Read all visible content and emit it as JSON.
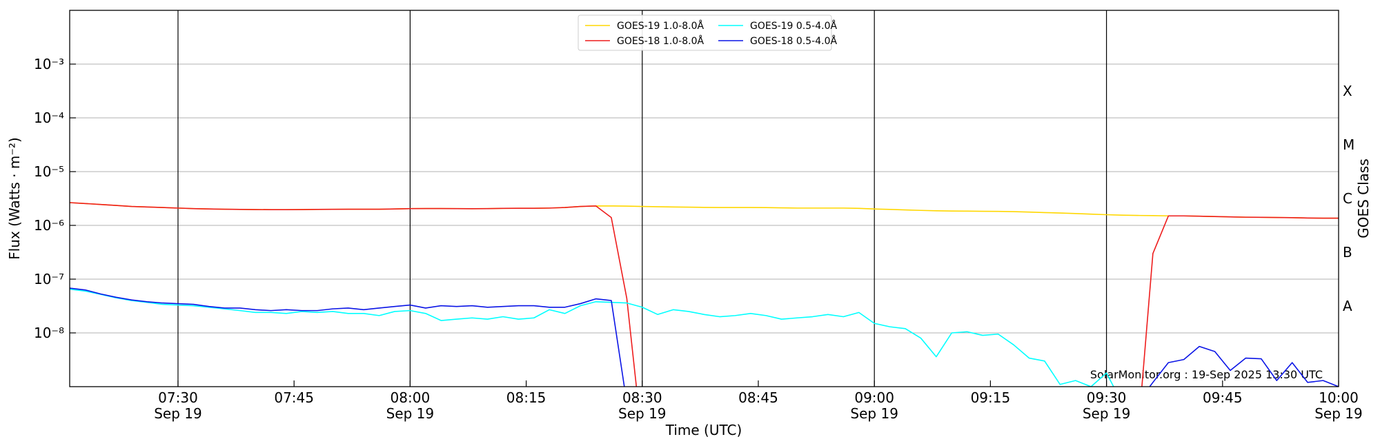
{
  "chart_data": {
    "type": "line",
    "xlabel": "Time (UTC)",
    "ylabel": "Flux (Watts · m⁻²)",
    "y2label": "GOES Class",
    "annotation": "SolarMonitor.org : 19-Sep 2025 13:30 UTC",
    "yscale": "log",
    "grid": "y",
    "legend": "upper center",
    "xlim": [
      "07:16",
      "10:00"
    ],
    "xticks": [
      {
        "value": "07:30",
        "label": "07:30\nSep 19"
      },
      {
        "value": "07:45",
        "label": "07:45"
      },
      {
        "value": "08:00",
        "label": "08:00\nSep 19"
      },
      {
        "value": "08:15",
        "label": "08:15"
      },
      {
        "value": "08:30",
        "label": "08:30\nSep 19"
      },
      {
        "value": "08:45",
        "label": "08:45"
      },
      {
        "value": "09:00",
        "label": "09:00\nSep 19"
      },
      {
        "value": "09:15",
        "label": "09:15"
      },
      {
        "value": "09:30",
        "label": "09:30\nSep 19"
      },
      {
        "value": "09:45",
        "label": "09:45"
      },
      {
        "value": "10:00",
        "label": "10:00\nSep 19"
      }
    ],
    "vlines": [
      "07:30",
      "08:00",
      "08:30",
      "09:00",
      "09:30"
    ],
    "ylim": [
      1e-09,
      0.01
    ],
    "yticks": [
      {
        "value": 1e-08,
        "label": "10⁻⁸"
      },
      {
        "value": 1e-07,
        "label": "10⁻⁷"
      },
      {
        "value": 1e-06,
        "label": "10⁻⁶"
      },
      {
        "value": 1e-05,
        "label": "10⁻⁵"
      },
      {
        "value": 0.0001,
        "label": "10⁻⁴"
      },
      {
        "value": 0.001,
        "label": "10⁻³"
      }
    ],
    "y2lim": [
      1e-09,
      0.01
    ],
    "y2ticks": [
      {
        "value": 3.16e-08,
        "label": "A"
      },
      {
        "value": 3.16e-07,
        "label": "B"
      },
      {
        "value": 3.16e-06,
        "label": "C"
      },
      {
        "value": 3.16e-05,
        "label": "M"
      },
      {
        "value": 0.000316,
        "label": "X"
      }
    ],
    "x": [
      "07:16",
      "07:18",
      "07:20",
      "07:22",
      "07:24",
      "07:26",
      "07:28",
      "07:30",
      "07:32",
      "07:34",
      "07:36",
      "07:38",
      "07:40",
      "07:42",
      "07:44",
      "07:46",
      "07:48",
      "07:50",
      "07:52",
      "07:54",
      "07:56",
      "07:58",
      "08:00",
      "08:02",
      "08:04",
      "08:06",
      "08:08",
      "08:10",
      "08:12",
      "08:14",
      "08:16",
      "08:18",
      "08:20",
      "08:22",
      "08:24",
      "08:26",
      "08:28",
      "08:30",
      "08:32",
      "08:34",
      "08:36",
      "08:38",
      "08:40",
      "08:42",
      "08:44",
      "08:46",
      "08:48",
      "08:50",
      "08:52",
      "08:54",
      "08:56",
      "08:58",
      "09:00",
      "09:02",
      "09:04",
      "09:06",
      "09:08",
      "09:10",
      "09:12",
      "09:14",
      "09:16",
      "09:18",
      "09:20",
      "09:22",
      "09:24",
      "09:26",
      "09:28",
      "09:30",
      "09:32",
      "09:34",
      "09:36",
      "09:38",
      "09:40",
      "09:42",
      "09:44",
      "09:46",
      "09:48",
      "09:50",
      "09:52",
      "09:54",
      "09:56",
      "09:58",
      "10:00"
    ],
    "series": [
      {
        "name": "GOES-19 1.0-8.0Å",
        "color": "#ffd700",
        "values": [
          2.65e-06,
          2.55e-06,
          2.45e-06,
          2.35e-06,
          2.25e-06,
          2.2e-06,
          2.15e-06,
          2.1e-06,
          2.05e-06,
          2.02e-06,
          2e-06,
          1.98e-06,
          1.97e-06,
          1.96e-06,
          1.96e-06,
          1.97e-06,
          1.98e-06,
          1.99e-06,
          2e-06,
          2e-06,
          2e-06,
          2.02e-06,
          2.05e-06,
          2.06e-06,
          2.06e-06,
          2.05e-06,
          2.04e-06,
          2.05e-06,
          2.07e-06,
          2.08e-06,
          2.08e-06,
          2.1e-06,
          2.15e-06,
          2.25e-06,
          2.3e-06,
          2.3e-06,
          2.28e-06,
          2.25e-06,
          2.22e-06,
          2.2e-06,
          2.18e-06,
          2.16e-06,
          2.15e-06,
          2.15e-06,
          2.15e-06,
          2.14e-06,
          2.12e-06,
          2.1e-06,
          2.1e-06,
          2.1e-06,
          2.1e-06,
          2.07e-06,
          2.02e-06,
          1.98e-06,
          1.94e-06,
          1.9e-06,
          1.87e-06,
          1.85e-06,
          1.84e-06,
          1.83e-06,
          1.82e-06,
          1.8e-06,
          1.77e-06,
          1.73e-06,
          1.7e-06,
          1.66e-06,
          1.62e-06,
          1.58e-06,
          1.55e-06,
          1.53e-06,
          1.52e-06,
          1.5e-06,
          1.5e-06,
          1.48e-06,
          1.46e-06,
          1.44e-06,
          1.42e-06,
          1.41e-06,
          1.4e-06,
          1.39e-06,
          1.37e-06,
          1.36e-06,
          1.36e-06
        ]
      },
      {
        "name": "GOES-18 1.0-8.0Å",
        "color": "#ee1c1c",
        "values": [
          2.65e-06,
          2.55e-06,
          2.45e-06,
          2.35e-06,
          2.25e-06,
          2.2e-06,
          2.15e-06,
          2.1e-06,
          2.05e-06,
          2.02e-06,
          2e-06,
          1.98e-06,
          1.97e-06,
          1.96e-06,
          1.96e-06,
          1.97e-06,
          1.98e-06,
          1.99e-06,
          2e-06,
          2e-06,
          2e-06,
          2.02e-06,
          2.05e-06,
          2.06e-06,
          2.06e-06,
          2.05e-06,
          2.04e-06,
          2.05e-06,
          2.07e-06,
          2.08e-06,
          2.08e-06,
          2.1e-06,
          2.15e-06,
          2.25e-06,
          2.3e-06,
          1.4e-06,
          4.4e-08,
          1e-10,
          null,
          null,
          null,
          null,
          null,
          null,
          null,
          null,
          null,
          null,
          null,
          null,
          null,
          null,
          null,
          null,
          null,
          null,
          null,
          null,
          null,
          null,
          null,
          null,
          null,
          null,
          null,
          null,
          null,
          null,
          null,
          1e-10,
          3e-07,
          1.5e-06,
          1.5e-06,
          1.48e-06,
          1.46e-06,
          1.44e-06,
          1.42e-06,
          1.41e-06,
          1.4e-06,
          1.39e-06,
          1.37e-06,
          1.36e-06,
          1.36e-06
        ]
      },
      {
        "name": "GOES-19 0.5-4.0Å",
        "color": "#00ffff",
        "values": [
          6.5e-08,
          6e-08,
          5.2e-08,
          4.5e-08,
          4e-08,
          3.7e-08,
          3.4e-08,
          3.3e-08,
          3.2e-08,
          3e-08,
          2.8e-08,
          2.6e-08,
          2.4e-08,
          2.4e-08,
          2.3e-08,
          2.5e-08,
          2.4e-08,
          2.5e-08,
          2.3e-08,
          2.3e-08,
          2.1e-08,
          2.5e-08,
          2.6e-08,
          2.3e-08,
          1.7e-08,
          1.8e-08,
          1.9e-08,
          1.8e-08,
          2e-08,
          1.8e-08,
          1.9e-08,
          2.7e-08,
          2.3e-08,
          3.2e-08,
          3.8e-08,
          3.7e-08,
          3.6e-08,
          3e-08,
          2.2e-08,
          2.7e-08,
          2.5e-08,
          2.2e-08,
          2e-08,
          2.1e-08,
          2.3e-08,
          2.1e-08,
          1.8e-08,
          1.9e-08,
          2e-08,
          2.2e-08,
          2e-08,
          2.4e-08,
          1.5e-08,
          1.3e-08,
          1.2e-08,
          8e-09,
          3.6e-09,
          1e-08,
          1.05e-08,
          9e-09,
          9.5e-09,
          6e-09,
          3.4e-09,
          3e-09,
          1.1e-09,
          1.3e-09,
          1e-09,
          1.8e-09,
          5e-10,
          null,
          null,
          null,
          null,
          null,
          null,
          null,
          null,
          null,
          null,
          null,
          null,
          null,
          null
        ]
      },
      {
        "name": "GOES-18 0.5-4.0Å",
        "color": "#0a14e6",
        "values": [
          6.8e-08,
          6.3e-08,
          5.3e-08,
          4.6e-08,
          4.1e-08,
          3.8e-08,
          3.6e-08,
          3.5e-08,
          3.4e-08,
          3.1e-08,
          2.9e-08,
          2.9e-08,
          2.7e-08,
          2.6e-08,
          2.7e-08,
          2.6e-08,
          2.6e-08,
          2.8e-08,
          2.9e-08,
          2.7e-08,
          2.9e-08,
          3.1e-08,
          3.3e-08,
          2.9e-08,
          3.2e-08,
          3.1e-08,
          3.2e-08,
          3e-08,
          3.1e-08,
          3.2e-08,
          3.2e-08,
          3e-08,
          3e-08,
          3.5e-08,
          4.3e-08,
          4e-08,
          5e-10,
          null,
          null,
          null,
          null,
          null,
          null,
          null,
          null,
          null,
          null,
          null,
          null,
          null,
          null,
          null,
          null,
          null,
          null,
          null,
          null,
          null,
          null,
          null,
          null,
          null,
          null,
          null,
          null,
          null,
          null,
          null,
          null,
          5e-10,
          1.2e-09,
          2.8e-09,
          3.2e-09,
          5.6e-09,
          4.5e-09,
          2e-09,
          3.4e-09,
          3.3e-09,
          1.3e-09,
          2.8e-09,
          1.2e-09,
          1.3e-09,
          1e-09
        ]
      }
    ]
  }
}
